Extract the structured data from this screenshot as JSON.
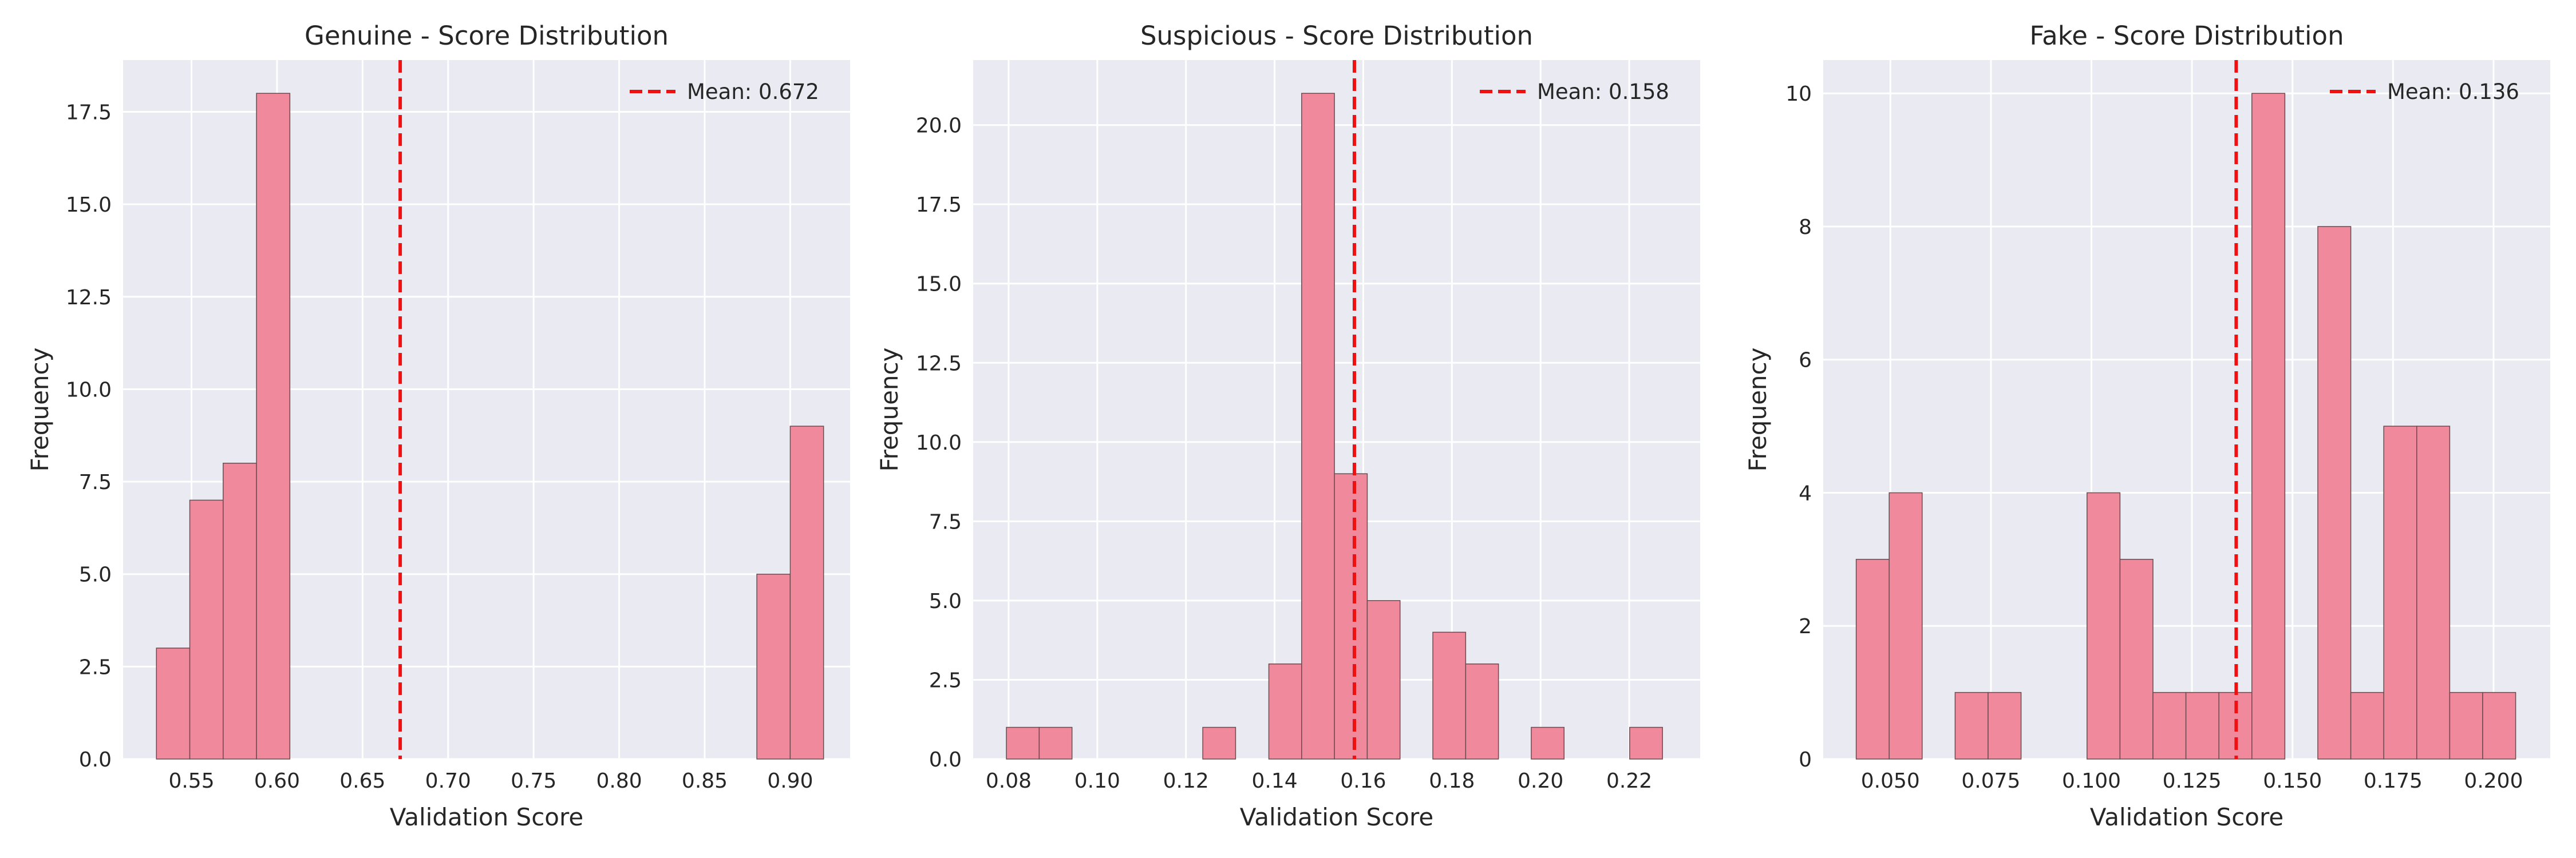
{
  "colors": {
    "plot_background": "#eaeaf2",
    "grid": "#ffffff",
    "bar_fill": "#f0899c",
    "bar_edge": "#6b4a50",
    "mean_line": "#ee1111",
    "text": "#262626"
  },
  "chart_data": [
    {
      "type": "bar",
      "title": "Genuine - Score Distribution",
      "xlabel": "Validation Score",
      "ylabel": "Frequency",
      "xlim": [
        0.51,
        0.935
      ],
      "ylim": [
        0,
        18.9
      ],
      "xticks": [
        0.55,
        0.6,
        0.65,
        0.7,
        0.75,
        0.8,
        0.85,
        0.9
      ],
      "xtick_labels": [
        "0.55",
        "0.60",
        "0.65",
        "0.70",
        "0.75",
        "0.80",
        "0.85",
        "0.90"
      ],
      "yticks": [
        0,
        2.5,
        5,
        7.5,
        10,
        12.5,
        15,
        17.5
      ],
      "ytick_labels": [
        "0.0",
        "2.5",
        "5.0",
        "7.5",
        "10.0",
        "12.5",
        "15.0",
        "17.5"
      ],
      "bins": [
        [
          0.5295,
          0.549
        ],
        [
          0.549,
          0.5685
        ],
        [
          0.5685,
          0.588
        ],
        [
          0.588,
          0.6075
        ],
        [
          0.8805,
          0.9
        ],
        [
          0.9,
          0.9195
        ]
      ],
      "values": [
        3,
        7,
        8,
        18,
        5,
        9
      ],
      "mean": 0.672,
      "legend": {
        "label": "Mean: 0.672",
        "position": "top-right"
      },
      "grid": true
    },
    {
      "type": "bar",
      "title": "Suspicious - Score Distribution",
      "xlabel": "Validation Score",
      "ylabel": "Frequency",
      "xlim": [
        0.072,
        0.236
      ],
      "ylim": [
        0,
        22.05
      ],
      "xticks": [
        0.08,
        0.1,
        0.12,
        0.14,
        0.16,
        0.18,
        0.2,
        0.22
      ],
      "xtick_labels": [
        "0.08",
        "0.10",
        "0.12",
        "0.14",
        "0.16",
        "0.18",
        "0.20",
        "0.22"
      ],
      "yticks": [
        0,
        2.5,
        5,
        7.5,
        10,
        12.5,
        15,
        17.5,
        20
      ],
      "ytick_labels": [
        "0.0",
        "2.5",
        "5.0",
        "7.5",
        "10.0",
        "12.5",
        "15.0",
        "17.5",
        "20.0"
      ],
      "bins": [
        [
          0.0795,
          0.0869
        ],
        [
          0.0869,
          0.0943
        ],
        [
          0.1238,
          0.1312
        ],
        [
          0.1387,
          0.1461
        ],
        [
          0.1461,
          0.1535
        ],
        [
          0.1535,
          0.1609
        ],
        [
          0.1609,
          0.1683
        ],
        [
          0.1757,
          0.1831
        ],
        [
          0.1831,
          0.1905
        ],
        [
          0.1979,
          0.2053
        ],
        [
          0.2201,
          0.2275
        ]
      ],
      "values": [
        1,
        1,
        1,
        3,
        21,
        9,
        5,
        4,
        3,
        1,
        1
      ],
      "mean": 0.158,
      "legend": {
        "label": "Mean: 0.158",
        "position": "top-right"
      },
      "grid": true
    },
    {
      "type": "bar",
      "title": "Fake - Score Distribution",
      "xlabel": "Validation Score",
      "ylabel": "Frequency",
      "xlim": [
        0.0333,
        0.2141
      ],
      "ylim": [
        0,
        10.5
      ],
      "xticks": [
        0.05,
        0.075,
        0.1,
        0.125,
        0.15,
        0.175,
        0.2
      ],
      "xtick_labels": [
        "0.050",
        "0.075",
        "0.100",
        "0.125",
        "0.150",
        "0.175",
        "0.200"
      ],
      "yticks": [
        0,
        2,
        4,
        6,
        8,
        10
      ],
      "ytick_labels": [
        "0",
        "2",
        "4",
        "6",
        "8",
        "10"
      ],
      "bins": [
        [
          0.0415,
          0.0497
        ],
        [
          0.0497,
          0.0579
        ],
        [
          0.0661,
          0.0743
        ],
        [
          0.0743,
          0.0825
        ],
        [
          0.0989,
          0.1071
        ],
        [
          0.1071,
          0.1153
        ],
        [
          0.1153,
          0.1235
        ],
        [
          0.1235,
          0.1317
        ],
        [
          0.1317,
          0.1399
        ],
        [
          0.1399,
          0.1481
        ],
        [
          0.1563,
          0.1645
        ],
        [
          0.1645,
          0.1727
        ],
        [
          0.1727,
          0.1809
        ],
        [
          0.1809,
          0.1891
        ],
        [
          0.1891,
          0.1973
        ],
        [
          0.1973,
          0.2055
        ]
      ],
      "values": [
        3,
        4,
        1,
        1,
        4,
        3,
        1,
        1,
        1,
        10,
        8,
        1,
        5,
        5,
        1,
        1
      ],
      "mean": 0.136,
      "legend": {
        "label": "Mean: 0.136",
        "position": "top-right"
      },
      "grid": true
    }
  ]
}
